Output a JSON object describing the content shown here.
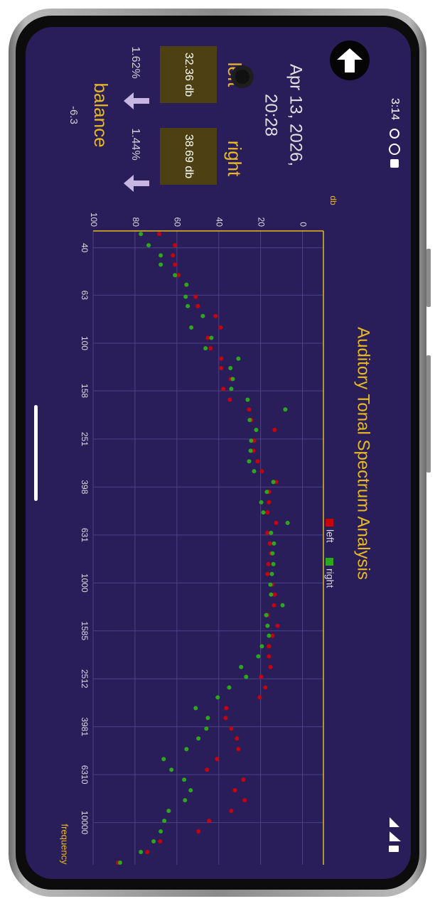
{
  "status_bar": {
    "time": "3:14"
  },
  "header": {
    "date": "Apr 13, 2026,",
    "time": "20:28"
  },
  "levels": {
    "left": {
      "label": "left",
      "value": "32.36 db",
      "percent": "1.62%"
    },
    "right": {
      "label": "right",
      "value": "38.69 db",
      "percent": "1.44%"
    },
    "balance": {
      "label": "balance",
      "value": "-6.3"
    }
  },
  "chart_data": {
    "type": "scatter",
    "title": "Auditory Tonal Spectrum Analysis",
    "y_label": "db",
    "x_label": "frequency",
    "x": [
      35,
      39,
      43,
      47,
      52,
      57,
      64,
      70,
      77,
      86,
      95,
      105,
      116,
      127,
      141,
      155,
      172,
      189,
      209,
      230,
      255,
      281,
      311,
      342,
      379,
      417,
      461,
      508,
      562,
      618,
      685,
      753,
      835,
      918,
      1017,
      1119,
      1239,
      1363,
      1510,
      1661,
      1839,
      2024,
      2242,
      2466,
      2731,
      3004,
      3328,
      3660,
      4054,
      4459,
      4939,
      5434,
      6018,
      6621,
      7334,
      8066,
      8936,
      9829,
      10886,
      11975,
      13266,
      14696
    ],
    "series": [
      {
        "name": "left",
        "color": "#c8000a",
        "values": [
          68.4,
          60.9,
          61.9,
          60.9,
          59.2,
          55.5,
          51.0,
          50.0,
          41.5,
          39.1,
          45.2,
          43.9,
          38.8,
          38.8,
          34.2,
          37.8,
          34.7,
          25.5,
          24.5,
          13.3,
          23.1,
          23.5,
          21.4,
          19.4,
          12.6,
          16.0,
          16.0,
          16.7,
          12.6,
          16.7,
          15.6,
          15.0,
          16.3,
          16.7,
          14.6,
          13.3,
          13.6,
          16.7,
          11.9,
          14.3,
          16.0,
          16.0,
          15.3,
          19.7,
          17.7,
          20.4,
          36.4,
          36.7,
          34.0,
          31.3,
          30.6,
          40.8,
          45.6,
          28.2,
          32.3,
          27.6,
          34.0,
          44.6,
          49.7,
          68.0,
          74.1,
          88.1
        ]
      },
      {
        "name": "right",
        "color": "#2ca81c",
        "values": [
          77.2,
          73.5,
          67.7,
          67.7,
          60.9,
          55.4,
          55.8,
          54.8,
          47.6,
          53.1,
          43.5,
          46.3,
          30.6,
          34.4,
          33.3,
          34.0,
          26.2,
          8.2,
          25.2,
          22.1,
          24.5,
          24.8,
          25.5,
          23.1,
          13.9,
          17.0,
          19.7,
          18.7,
          7.1,
          15.0,
          13.6,
          14.3,
          13.9,
          14.6,
          15.3,
          15.0,
          9.5,
          17.3,
          16.7,
          16.0,
          19.4,
          21.1,
          29.3,
          26.9,
          35.0,
          40.5,
          51.0,
          45.2,
          45.9,
          49.7,
          55.4,
          66.3,
          62.6,
          56.5,
          53.4,
          56.1,
          63.9,
          66.0,
          67.7,
          71.1,
          77.2,
          87.1
        ]
      }
    ],
    "xlim": [
      34,
      15000
    ],
    "xticks": [
      40,
      63,
      100,
      158,
      251,
      398,
      631,
      1000,
      1585,
      2512,
      3981,
      6310,
      10000
    ],
    "ylim": [
      -10,
      100
    ],
    "yticks": [
      0,
      20,
      40,
      60,
      80,
      100
    ],
    "log_x": true,
    "y_inverted": true,
    "grid": true,
    "legend": "top",
    "axis_color": "#e8b923"
  }
}
